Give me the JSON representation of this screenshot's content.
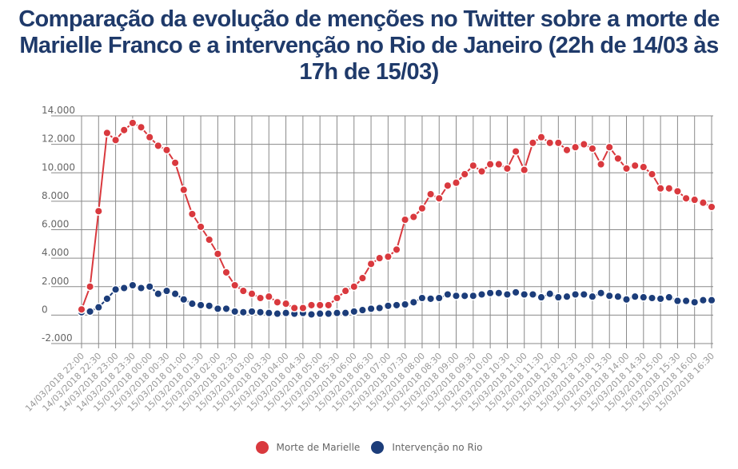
{
  "chart_data": {
    "type": "line",
    "title": "Comparação da evolução de menções no Twitter sobre a morte de Marielle Franco e a intervenção no Rio de Janeiro (22h de 14/03 às 17h de 15/03)",
    "xlabel": "",
    "ylabel": "",
    "ylim": [
      -2000,
      14000
    ],
    "y_ticks": [
      "-2.000",
      "0",
      "2.000",
      "4.000",
      "6.000",
      "8.000",
      "10.000",
      "12.000",
      "14.000"
    ],
    "y_tick_values": [
      -2000,
      0,
      2000,
      4000,
      6000,
      8000,
      10000,
      12000,
      14000
    ],
    "x_tick_labels": [
      "14/03/2018 22:00",
      "14/03/2018 22:30",
      "14/03/2018 23:00",
      "14/03/2018 23:30",
      "15/03/2018 00:00",
      "15/03/2018 00:30",
      "15/03/2018 01:00",
      "15/03/2018 01:30",
      "15/03/2018 02:00",
      "15/03/2018 02:30",
      "15/03/2018 03:00",
      "15/03/2018 03:30",
      "15/03/2018 04:00",
      "15/03/2018 04:30",
      "15/03/2018 05:00",
      "15/03/2018 05:30",
      "15/03/2018 06:00",
      "15/03/2018 06:30",
      "15/03/2018 07:00",
      "15/03/2018 07:30",
      "15/03/2018 08:00",
      "15/03/2018 08:30",
      "15/03/2018 09:00",
      "15/03/2018 09:30",
      "15/03/2018 10:00",
      "15/03/2018 10:30",
      "15/03/2018 11:00",
      "15/03/2018 11:30",
      "15/03/2018 12:00",
      "15/03/2018 12:30",
      "15/03/2018 13:00",
      "15/03/2018 13:30",
      "15/03/2018 14:00",
      "15/03/2018 14:30",
      "15/03/2018 15:00",
      "15/03/2018 15:30",
      "15/03/2018 16:00",
      "15/03/2018 16:30"
    ],
    "x_interval_minutes": 15,
    "grid": true,
    "legend_position": "bottom-center",
    "series": [
      {
        "name": "Morte de Marielle",
        "color": "#d9393e",
        "values": [
          400,
          2000,
          7300,
          12800,
          12300,
          13000,
          13500,
          13200,
          12500,
          11900,
          11600,
          10700,
          8800,
          7100,
          6200,
          5300,
          4300,
          3000,
          2100,
          1700,
          1500,
          1200,
          1300,
          900,
          800,
          500,
          500,
          700,
          700,
          700,
          1200,
          1700,
          2000,
          2600,
          3600,
          4000,
          4100,
          4600,
          6700,
          6900,
          7500,
          8500,
          8200,
          9100,
          9300,
          9900,
          10500,
          10100,
          10600,
          10600,
          10300,
          11500,
          10200,
          12100,
          12500,
          12100,
          12100,
          11600,
          11800,
          12000,
          11700,
          10600,
          11800,
          11000,
          10300,
          10500,
          10400,
          9900,
          8900,
          8900,
          8700,
          8200,
          8100,
          7900,
          7600
        ]
      },
      {
        "name": "Intervenção no Rio",
        "color": "#1c3d7a",
        "values": [
          200,
          250,
          550,
          1150,
          1800,
          1900,
          2100,
          1900,
          2000,
          1500,
          1700,
          1500,
          1100,
          800,
          700,
          650,
          450,
          450,
          250,
          200,
          250,
          200,
          150,
          100,
          150,
          100,
          150,
          50,
          100,
          100,
          150,
          150,
          250,
          350,
          450,
          500,
          650,
          700,
          750,
          900,
          1200,
          1150,
          1200,
          1450,
          1350,
          1350,
          1350,
          1450,
          1550,
          1550,
          1450,
          1600,
          1450,
          1450,
          1250,
          1500,
          1250,
          1300,
          1450,
          1450,
          1300,
          1550,
          1350,
          1300,
          1100,
          1300,
          1250,
          1200,
          1150,
          1250,
          1000,
          1000,
          900,
          1050,
          1050
        ]
      }
    ]
  }
}
